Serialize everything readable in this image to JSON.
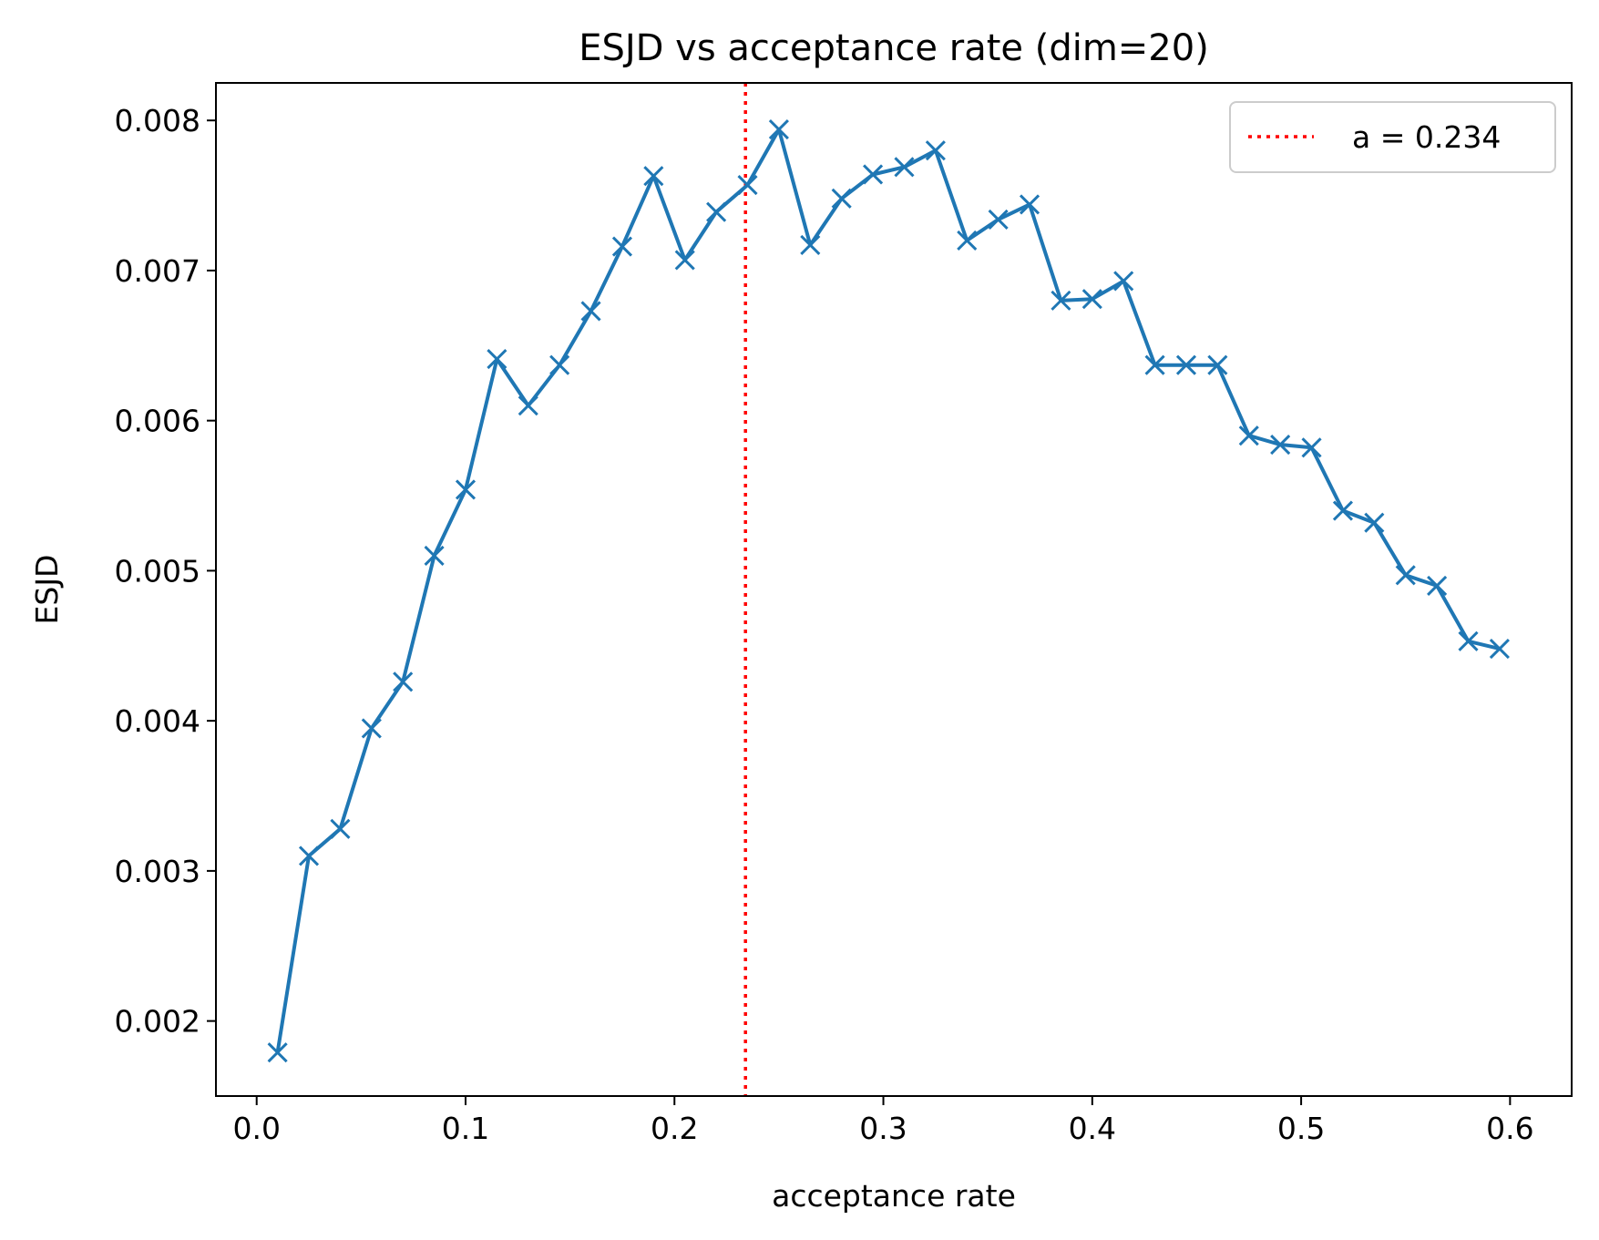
{
  "chart_data": {
    "type": "line",
    "title": "ESJD vs acceptance rate (dim=20)",
    "xlabel": "acceptance rate",
    "ylabel": "ESJD",
    "xlim": [
      -0.0195,
      0.6295
    ],
    "ylim": [
      0.0015,
      0.00825
    ],
    "xticks": [
      0.0,
      0.1,
      0.2,
      0.3,
      0.4,
      0.5,
      0.6
    ],
    "xtick_labels": [
      "0.0",
      "0.1",
      "0.2",
      "0.3",
      "0.4",
      "0.5",
      "0.6"
    ],
    "yticks": [
      0.002,
      0.003,
      0.004,
      0.005,
      0.006,
      0.007,
      0.008
    ],
    "ytick_labels": [
      "0.002",
      "0.003",
      "0.004",
      "0.005",
      "0.006",
      "0.007",
      "0.008"
    ],
    "grid": false,
    "legend": {
      "position": "top-right",
      "entries": [
        "a = 0.234"
      ]
    },
    "series": [
      {
        "name": "ESJD",
        "color": "#1f77b4",
        "marker": "x",
        "x": [
          0.01,
          0.025,
          0.04,
          0.055,
          0.07,
          0.085,
          0.1,
          0.115,
          0.13,
          0.145,
          0.16,
          0.175,
          0.19,
          0.205,
          0.22,
          0.235,
          0.25,
          0.265,
          0.28,
          0.295,
          0.31,
          0.325,
          0.34,
          0.355,
          0.37,
          0.385,
          0.4,
          0.415,
          0.43,
          0.445,
          0.46,
          0.475,
          0.49,
          0.505,
          0.52,
          0.535,
          0.55,
          0.565,
          0.58,
          0.595
        ],
        "y": [
          0.00179,
          0.0031,
          0.00328,
          0.00395,
          0.00426,
          0.0051,
          0.00554,
          0.00641,
          0.0061,
          0.00637,
          0.00673,
          0.00716,
          0.00763,
          0.00707,
          0.00739,
          0.00757,
          0.00794,
          0.00717,
          0.00748,
          0.00764,
          0.00769,
          0.0078,
          0.0072,
          0.00734,
          0.00744,
          0.0068,
          0.00681,
          0.00693,
          0.00637,
          0.00637,
          0.00637,
          0.0059,
          0.00584,
          0.00582,
          0.0054,
          0.00532,
          0.00497,
          0.0049,
          0.00453,
          0.00448
        ]
      }
    ],
    "reference_line": {
      "x": 0.234,
      "label": "a = 0.234",
      "color": "#ff0000",
      "style": "dotted"
    }
  }
}
